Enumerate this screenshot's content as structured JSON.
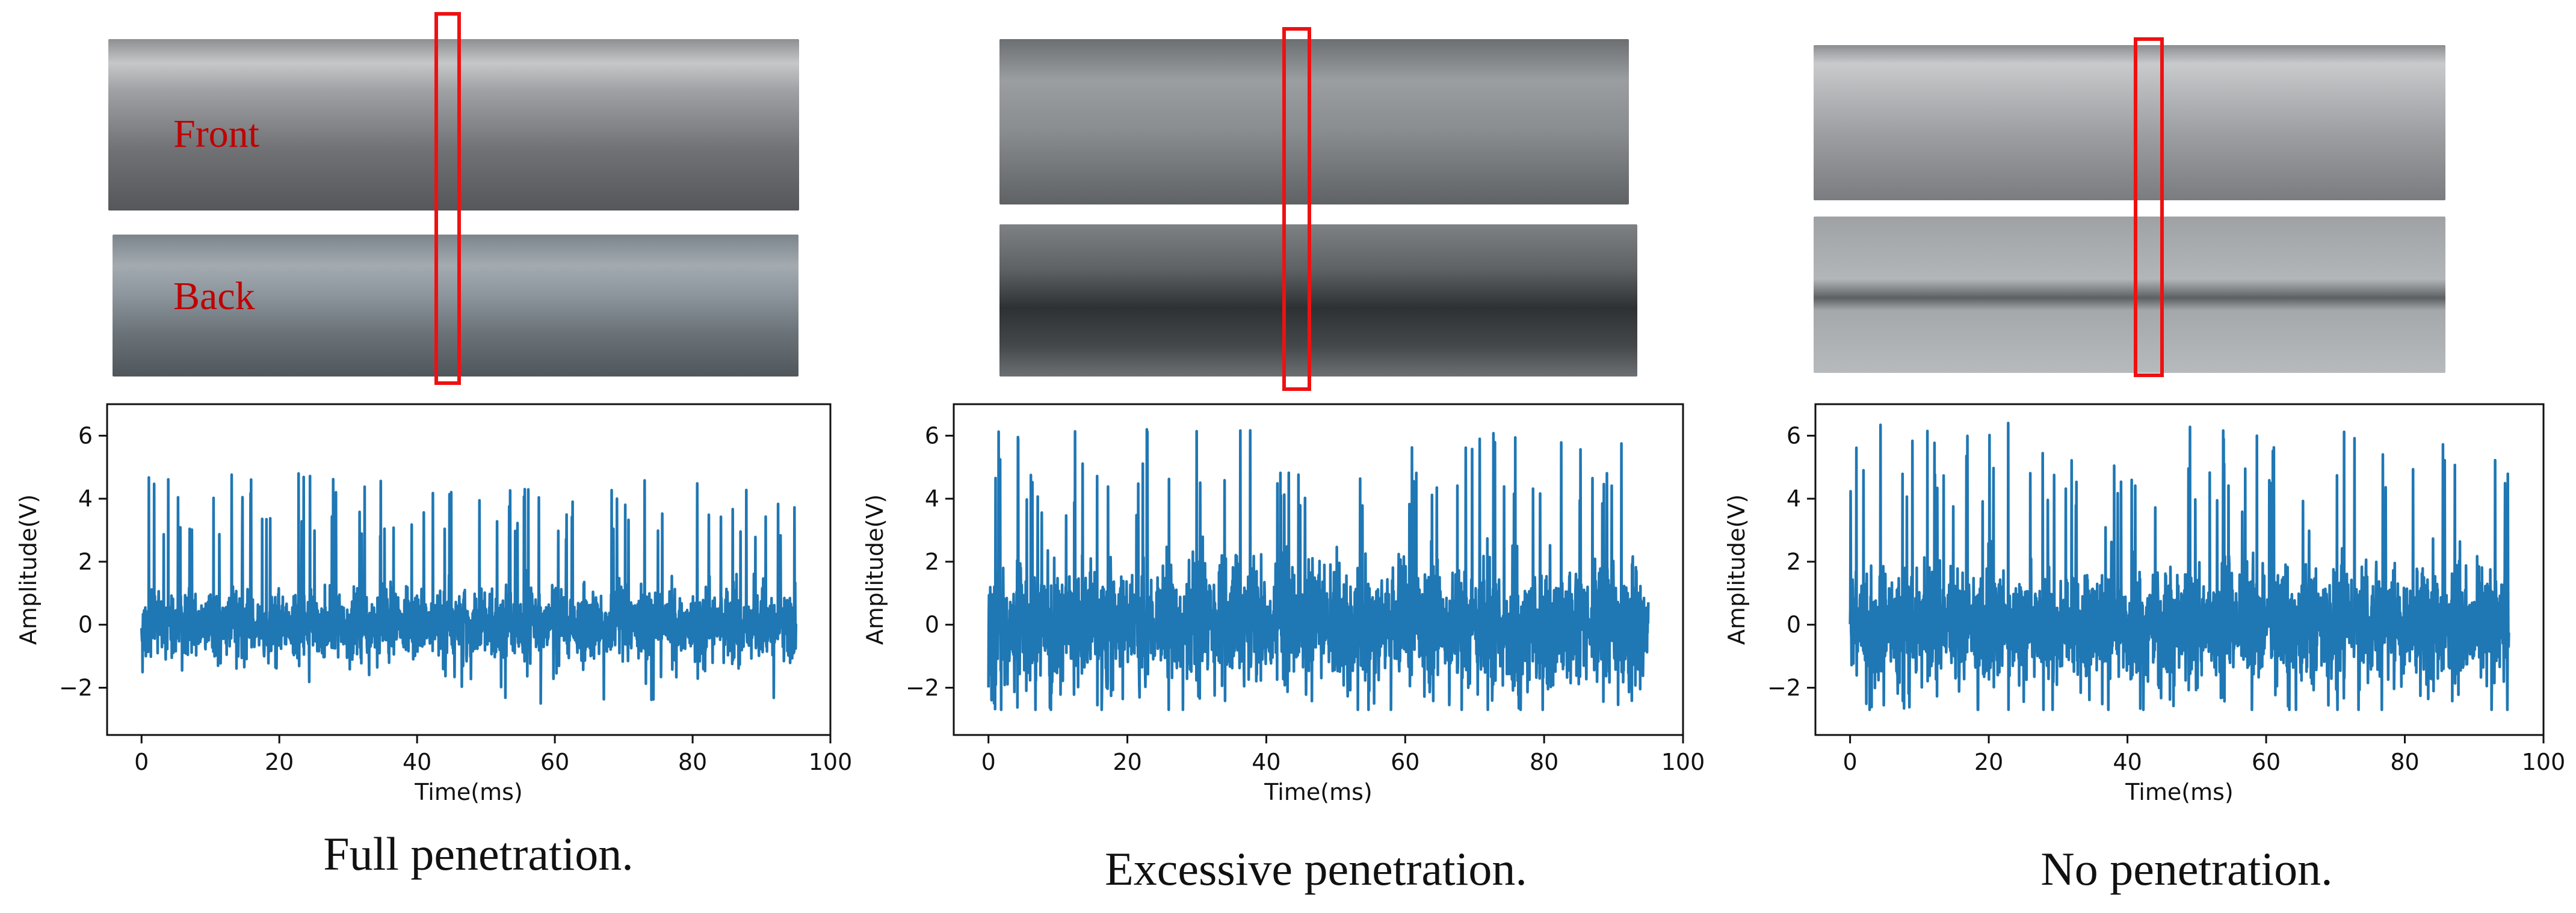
{
  "photo_labels": {
    "front": "Front",
    "back": "Back"
  },
  "colors": {
    "series": "#1f77b4",
    "marker": "#ee1111"
  },
  "chart_data": [
    {
      "type": "line",
      "caption": "Full penetration.",
      "xlabel": "Time(ms)",
      "ylabel": "Amplitude(V)",
      "xlim": [
        -5,
        100
      ],
      "ylim": [
        -3.5,
        7
      ],
      "xticks": [
        0,
        20,
        40,
        60,
        80,
        100
      ],
      "yticks": [
        -2,
        0,
        2,
        4,
        6
      ],
      "x_range": [
        0,
        95
      ],
      "series": [
        {
          "values_summary": "dense oscillating signal, mostly between -2.5 and 3, peaks about 4.8",
          "min": -2.5,
          "max": 4.8
        }
      ],
      "grid": false
    },
    {
      "type": "line",
      "caption": "Excessive penetration.",
      "xlabel": "Time(ms)",
      "ylabel": "Amplitude(V)",
      "xlim": [
        -5,
        100
      ],
      "ylim": [
        -3.5,
        7
      ],
      "xticks": [
        0,
        20,
        40,
        60,
        80,
        100
      ],
      "yticks": [
        -2,
        0,
        2,
        4,
        6
      ],
      "x_range": [
        0,
        95
      ],
      "series": [
        {
          "values_summary": "dense oscillating signal between about -2.7 and 6.2",
          "min": -2.7,
          "max": 6.2
        }
      ],
      "grid": false
    },
    {
      "type": "line",
      "caption": "No penetration.",
      "xlabel": "Time(ms)",
      "ylabel": "Amplitude(V)",
      "xlim": [
        -5,
        100
      ],
      "ylim": [
        -3.5,
        7
      ],
      "xticks": [
        0,
        20,
        40,
        60,
        80,
        100
      ],
      "yticks": [
        -2,
        0,
        2,
        4,
        6
      ],
      "x_range": [
        0,
        95
      ],
      "series": [
        {
          "values_summary": "dense oscillating signal between about -2.7 and 6.4",
          "min": -2.7,
          "max": 6.4
        }
      ],
      "grid": false
    }
  ]
}
